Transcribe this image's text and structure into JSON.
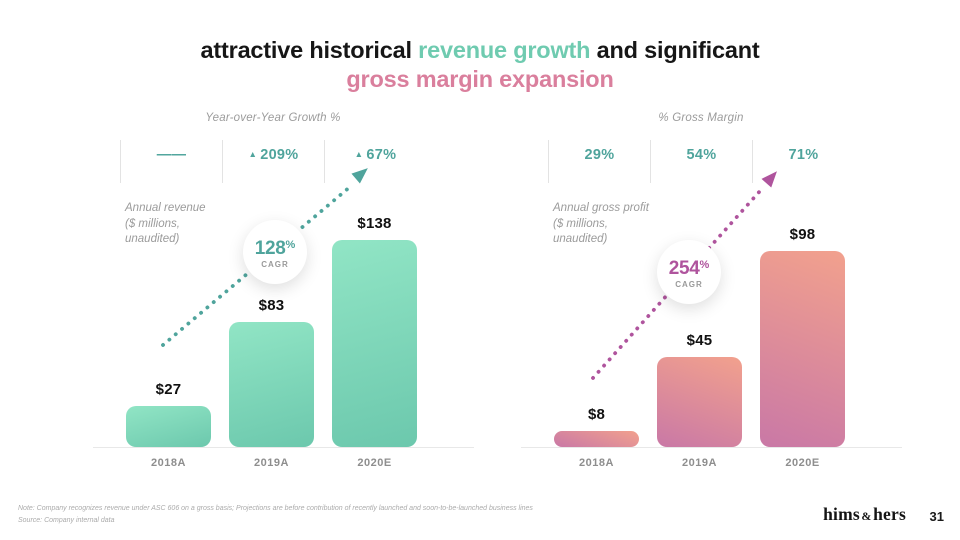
{
  "slide": {
    "title_line1_parts": [
      {
        "text": "attractive historical ",
        "style": "dark"
      },
      {
        "text": "revenue growth",
        "style": "teal"
      },
      {
        "text": " and significant",
        "style": "dark"
      }
    ],
    "title_line2_parts": [
      {
        "text": "gross margin expansion",
        "style": "pink"
      }
    ],
    "footnote_line1": "Note: Company recognizes revenue under ASC 606 on a gross basis; Projections are before contribution of recently launched and soon-to-be-launched business lines",
    "footnote_line2": "Source: Company internal data",
    "logo": {
      "part1": "hims",
      "amp": "&",
      "part2": "hers"
    },
    "page_number": "31"
  },
  "colors": {
    "dark": "#161616",
    "teal": "#6fcbb0",
    "pink": "#da7f9d",
    "accent_teal": "#4fa49c",
    "accent_magenta": "#af549d",
    "top_row_text": "#4fa49c"
  },
  "chart_data": [
    {
      "type": "bar",
      "title": "Year-over-Year Growth %",
      "axis_note": "Annual revenue\n($ millions,\nunaudited)",
      "categories": [
        "2018A",
        "2019A",
        "2020E"
      ],
      "values": [
        27,
        83,
        138
      ],
      "value_labels": [
        "$27",
        "$83",
        "$138"
      ],
      "top_row": [
        {
          "prefix": "",
          "text": "——"
        },
        {
          "prefix": "▲",
          "text": "209%"
        },
        {
          "prefix": "▲",
          "text": "67%"
        }
      ],
      "cagr": {
        "value": "128",
        "unit": "%",
        "label": "CAGR"
      },
      "accent": "#4fa49c",
      "top_row_color": "#4fa49c",
      "bar_gradient": [
        "#91e5c5",
        "#6cc8ad"
      ],
      "ylim": [
        0,
        150
      ],
      "grid": false,
      "legend": "none"
    },
    {
      "type": "bar",
      "title": "% Gross Margin",
      "axis_note": "Annual gross profit\n($ millions,\nunaudited)",
      "categories": [
        "2018A",
        "2019A",
        "2020E"
      ],
      "values": [
        8,
        45,
        98
      ],
      "value_labels": [
        "$8",
        "$45",
        "$98"
      ],
      "top_row": [
        {
          "prefix": "",
          "text": "29%"
        },
        {
          "prefix": "",
          "text": "54%"
        },
        {
          "prefix": "",
          "text": "71%"
        }
      ],
      "cagr": {
        "value": "254",
        "unit": "%",
        "label": "CAGR"
      },
      "accent": "#af549d",
      "top_row_color": "#4fa49c",
      "bar_gradient": [
        "#f2a18d",
        "#c978a6"
      ],
      "ylim": [
        0,
        105
      ],
      "grid": false,
      "legend": "none"
    }
  ]
}
